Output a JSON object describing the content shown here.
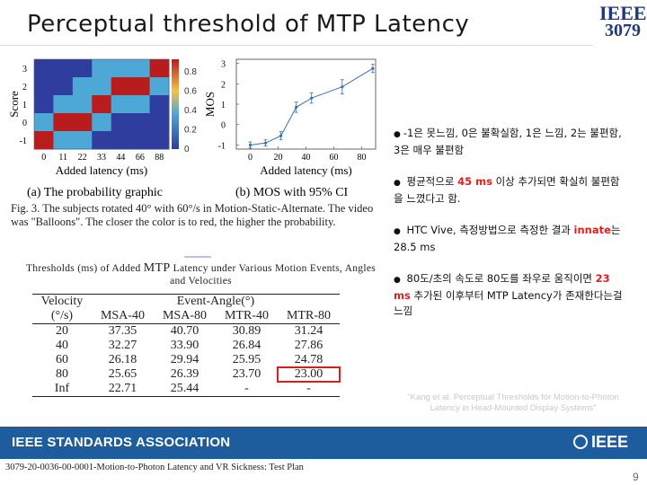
{
  "slide": {
    "title": "Perceptual threshold of MTP Latency",
    "logo_line1": "IEEE",
    "logo_line2": "3079"
  },
  "figure": {
    "caption_a": "(a) The probability graphic",
    "caption_b": "(b) MOS with 95% CI",
    "caption": "Fig. 3.  The subjects rotated 40° with 60°/s in Motion-Static-Alternate. The video was \"Balloons\". The closer the color is to red, the higher the probability."
  },
  "chart_data": [
    {
      "type": "heatmap",
      "title": "",
      "xlabel": "Added latency (ms)",
      "ylabel": "Score",
      "x_ticks": [
        "0",
        "11",
        "22",
        "33",
        "44",
        "66",
        "88"
      ],
      "y_ticks": [
        "3",
        "2",
        "1",
        "0",
        "-1"
      ],
      "colorbar_ticks": [
        "0.8",
        "0.6",
        "0.4",
        "0.2",
        "0"
      ],
      "colors": {
        "high": "#b81c1c",
        "low": "#2f3d9e"
      },
      "cells": [
        [
          "low",
          "low",
          "low",
          "mid",
          "mid",
          "mid",
          "high"
        ],
        [
          "low",
          "low",
          "mid",
          "mid",
          "high",
          "high",
          "mid"
        ],
        [
          "low",
          "mid",
          "mid",
          "high",
          "mid",
          "mid",
          "low"
        ],
        [
          "mid",
          "high",
          "high",
          "mid",
          "low",
          "low",
          "low"
        ],
        [
          "high",
          "mid",
          "mid",
          "low",
          "low",
          "low",
          "low"
        ]
      ]
    },
    {
      "type": "line",
      "title": "",
      "xlabel": "Added latency (ms)",
      "ylabel": "MOS",
      "x_ticks": [
        "0",
        "20",
        "40",
        "60",
        "80"
      ],
      "y_ticks": [
        "3",
        "2",
        "1",
        "0",
        "-1"
      ],
      "xlim": [
        -10,
        90
      ],
      "ylim": [
        -1.2,
        3.2
      ],
      "grid": false,
      "series": [
        {
          "x": [
            0,
            11,
            22,
            33,
            44,
            66,
            88
          ],
          "y": [
            -1.0,
            -0.9,
            -0.55,
            0.85,
            1.3,
            1.85,
            2.75
          ],
          "err": [
            0.15,
            0.15,
            0.2,
            0.25,
            0.25,
            0.35,
            0.2
          ]
        }
      ]
    }
  ],
  "table": {
    "title_pre": "Thresholds (ms) of Added ",
    "title_big": "MTP",
    "title_post": " Latency under Various Motion Events, Angles and Velocities",
    "col_velocity": "Velocity",
    "col_velocity_unit": "(°/s)",
    "col_group": "Event-Angle(°)",
    "columns": [
      "MSA-40",
      "MSA-80",
      "MTR-40",
      "MTR-80"
    ],
    "rows": [
      [
        "20",
        "37.35",
        "40.70",
        "30.89",
        "31.24"
      ],
      [
        "40",
        "32.27",
        "33.90",
        "26.84",
        "27.86"
      ],
      [
        "60",
        "26.18",
        "29.94",
        "25.95",
        "24.78"
      ],
      [
        "80",
        "25.65",
        "26.39",
        "23.70",
        "23.00"
      ],
      [
        "Inf",
        "22.71",
        "25.44",
        "-",
        "-"
      ]
    ]
  },
  "bullets": [
    {
      "parts": [
        "-1은 못느낌, 0은 불확실함, 1은 느낌, 2는 불편함, 3은 매우 불편함"
      ]
    },
    {
      "pre": "평균적으로 ",
      "red": "45 ms",
      "post": " 이상 추가되면 확실히 불편함을 느꼈다고 함."
    },
    {
      "pre": "HTC Vive, 측정방법으로 측정한 결과 ",
      "red": "innate",
      "post": "는 28.5 ms"
    },
    {
      "pre": "80도/초의 속도로 80도를 좌우로 움직이면 ",
      "red": "23 ms",
      "post": " 추가된 이후부터 MTP Latency가 존재한다는걸 느낌"
    }
  ],
  "faint_note": "\"Kang et al. Perceptual Thresholds for Motion-to-Photon Latency in Head-Mounted Display Systems\"",
  "footer": {
    "association": "IEEE STANDARDS ASSOCIATION",
    "ieee": "IEEE",
    "doc_id": "3079-20-0036-00-0001-Motion-to-Photon Latency and VR Sickness: Test Plan",
    "page": "9"
  }
}
